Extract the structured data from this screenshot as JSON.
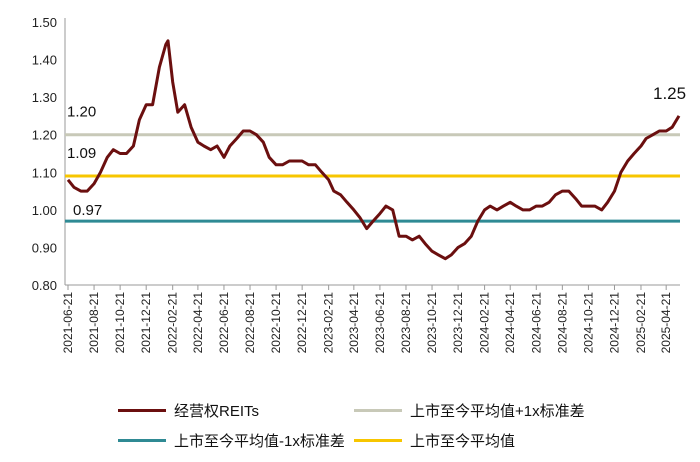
{
  "chart_data": {
    "type": "line",
    "ylim": [
      0.8,
      1.5
    ],
    "yticks": [
      "0.80",
      "0.90",
      "1.00",
      "1.10",
      "1.20",
      "1.30",
      "1.40",
      "1.50"
    ],
    "xticks": [
      "2021-06-21",
      "2021-08-21",
      "2021-10-21",
      "2021-12-21",
      "2022-02-21",
      "2022-04-21",
      "2022-06-21",
      "2022-08-21",
      "2022-10-21",
      "2022-12-21",
      "2023-02-21",
      "2023-04-21",
      "2023-06-21",
      "2023-08-21",
      "2023-10-21",
      "2023-12-21",
      "2024-02-21",
      "2024-04-21",
      "2024-06-21",
      "2024-08-21",
      "2024-10-21",
      "2024-12-21",
      "2025-02-21",
      "2025-04-21"
    ],
    "series": [
      {
        "name": "经营权REITs",
        "color": "#6b0f0f",
        "x": [
          "2021-06-21",
          "2021-07-05",
          "2021-07-21",
          "2021-08-05",
          "2021-08-21",
          "2021-09-05",
          "2021-09-21",
          "2021-10-05",
          "2021-10-21",
          "2021-11-05",
          "2021-11-21",
          "2021-12-05",
          "2021-12-21",
          "2022-01-05",
          "2022-01-21",
          "2022-02-05",
          "2022-02-10",
          "2022-02-21",
          "2022-03-05",
          "2022-03-21",
          "2022-04-05",
          "2022-04-21",
          "2022-05-05",
          "2022-05-21",
          "2022-06-05",
          "2022-06-21",
          "2022-07-05",
          "2022-07-21",
          "2022-08-05",
          "2022-08-21",
          "2022-09-05",
          "2022-09-21",
          "2022-10-05",
          "2022-10-21",
          "2022-11-05",
          "2022-11-21",
          "2022-12-05",
          "2022-12-21",
          "2023-01-05",
          "2023-01-21",
          "2023-02-05",
          "2023-02-21",
          "2023-03-05",
          "2023-03-21",
          "2023-04-05",
          "2023-04-21",
          "2023-05-05",
          "2023-05-21",
          "2023-06-05",
          "2023-06-21",
          "2023-07-05",
          "2023-07-21",
          "2023-08-05",
          "2023-08-21",
          "2023-09-05",
          "2023-09-21",
          "2023-10-05",
          "2023-10-21",
          "2023-11-05",
          "2023-11-21",
          "2023-12-05",
          "2023-12-21",
          "2024-01-05",
          "2024-01-21",
          "2024-02-05",
          "2024-02-21",
          "2024-03-05",
          "2024-03-21",
          "2024-04-05",
          "2024-04-21",
          "2024-05-05",
          "2024-05-21",
          "2024-06-05",
          "2024-06-21",
          "2024-07-05",
          "2024-07-21",
          "2024-08-05",
          "2024-08-21",
          "2024-09-05",
          "2024-09-21",
          "2024-10-05",
          "2024-10-21",
          "2024-11-05",
          "2024-11-21",
          "2024-12-05",
          "2024-12-21",
          "2025-01-05",
          "2025-01-21",
          "2025-02-05",
          "2025-02-21",
          "2025-03-05",
          "2025-03-21",
          "2025-04-05",
          "2025-04-21",
          "2025-05-05",
          "2025-05-21"
        ],
        "values": [
          1.08,
          1.06,
          1.05,
          1.05,
          1.07,
          1.1,
          1.14,
          1.16,
          1.15,
          1.15,
          1.17,
          1.24,
          1.28,
          1.28,
          1.38,
          1.44,
          1.45,
          1.34,
          1.26,
          1.28,
          1.22,
          1.18,
          1.17,
          1.16,
          1.17,
          1.14,
          1.17,
          1.19,
          1.21,
          1.21,
          1.2,
          1.18,
          1.14,
          1.12,
          1.12,
          1.13,
          1.13,
          1.13,
          1.12,
          1.12,
          1.1,
          1.08,
          1.05,
          1.04,
          1.02,
          1.0,
          0.98,
          0.95,
          0.97,
          0.99,
          1.01,
          1.0,
          0.93,
          0.93,
          0.92,
          0.93,
          0.91,
          0.89,
          0.88,
          0.87,
          0.88,
          0.9,
          0.91,
          0.93,
          0.97,
          1.0,
          1.01,
          1.0,
          1.01,
          1.02,
          1.01,
          1.0,
          1.0,
          1.01,
          1.01,
          1.02,
          1.04,
          1.05,
          1.05,
          1.03,
          1.01,
          1.01,
          1.01,
          1.0,
          1.02,
          1.05,
          1.1,
          1.13,
          1.15,
          1.17,
          1.19,
          1.2,
          1.21,
          1.21,
          1.22,
          1.25
        ]
      }
    ],
    "hlines": [
      {
        "name": "上市至今平均值+1x标准差",
        "value": 1.2,
        "label": "1.20",
        "color": "#c8c9b8"
      },
      {
        "name": "上市至今平均值",
        "value": 1.09,
        "label": "1.09",
        "color": "#f7c600"
      },
      {
        "name": "上市至今平均值-1x标准差",
        "value": 0.97,
        "label": "0.97",
        "color": "#2f8a94"
      }
    ],
    "end_label": "1.25",
    "grid": false,
    "legend_placement": "bottom"
  },
  "legend": [
    {
      "label": "经营权REITs",
      "color": "#6b0f0f"
    },
    {
      "label": "上市至今平均值+1x标准差",
      "color": "#c8c9b8"
    },
    {
      "label": "上市至今平均值-1x标准差",
      "color": "#2f8a94"
    },
    {
      "label": "上市至今平均值",
      "color": "#f7c600"
    }
  ]
}
